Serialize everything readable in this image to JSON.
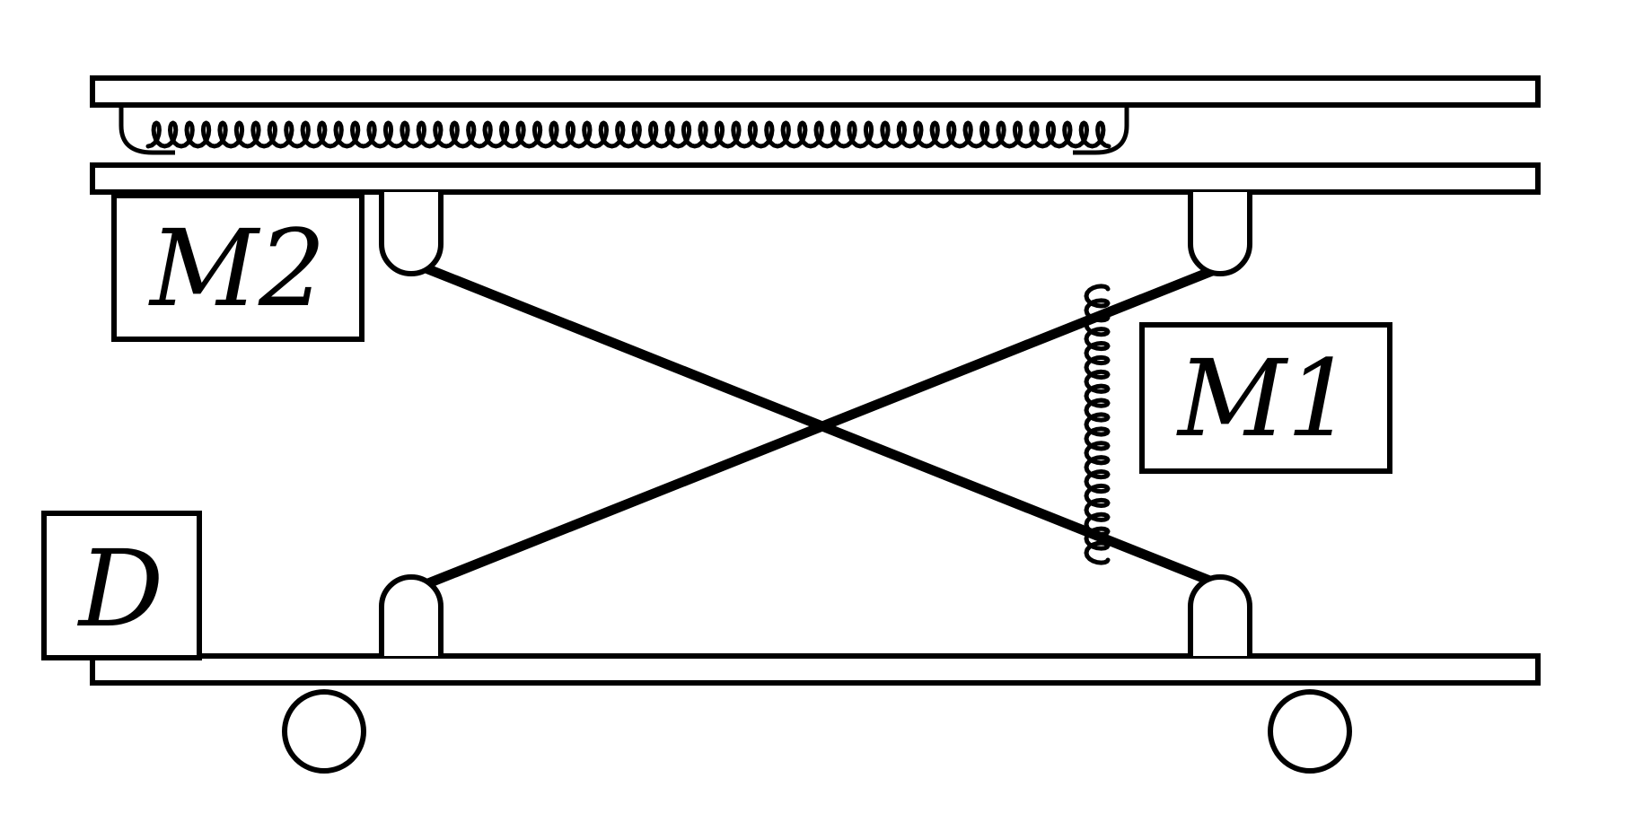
{
  "labels": {
    "m2": "M2",
    "m1": "M1",
    "d": "D"
  },
  "colors": {
    "stroke": "#000000",
    "background": "#ffffff"
  },
  "structure": {
    "plates": [
      "top-plate",
      "middle-plate",
      "base-plate"
    ],
    "springs": [
      "horizontal-spring",
      "vertical-spring"
    ],
    "arms": [
      "scissor-arm-a",
      "scissor-arm-b"
    ],
    "wheels": [
      "left-wheel",
      "right-wheel"
    ]
  }
}
